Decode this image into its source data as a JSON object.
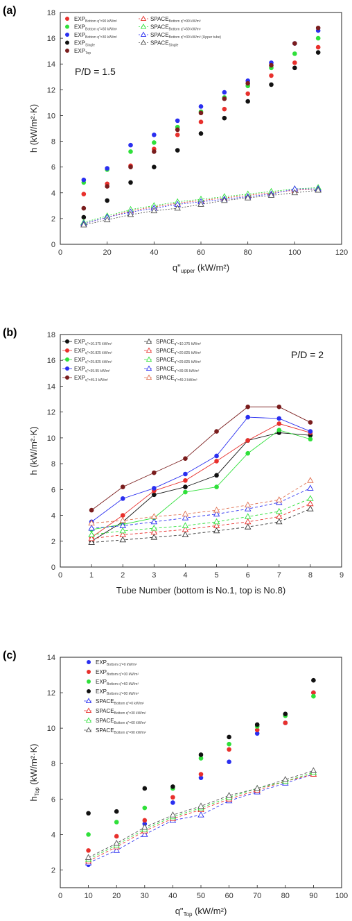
{
  "chart_data": [
    {
      "panel": "(a)",
      "type": "scatter",
      "xlabel": "q\"",
      "xlabel_sub": "upper",
      "xlabel_unit": " (kW/m²)",
      "ylabel": "h (kW/m²·K)",
      "xlim": [
        0,
        120
      ],
      "ylim": [
        0,
        18
      ],
      "xticks": [
        0,
        20,
        40,
        60,
        80,
        100,
        120
      ],
      "yticks": [
        0,
        2,
        4,
        6,
        8,
        10,
        12,
        14,
        16,
        18
      ],
      "annotation": "P/D = 1.5",
      "legend_columns": 2,
      "series": [
        {
          "label": "EXP",
          "sub": "Bottom q\"=90 kW/m²",
          "marker": "dot",
          "color": "#e8302c",
          "x": [
            10,
            20,
            30,
            40,
            50,
            60,
            70,
            80,
            90,
            100,
            110
          ],
          "y": [
            3.9,
            4.7,
            6.1,
            7.4,
            8.5,
            9.5,
            10.5,
            11.7,
            13.1,
            14.1,
            15.3
          ]
        },
        {
          "label": "EXP",
          "sub": "Bottom q\"=60 kW/m²",
          "marker": "dot",
          "color": "#2fe03a",
          "x": [
            10,
            20,
            30,
            40,
            50,
            60,
            70,
            80,
            90,
            100,
            110
          ],
          "y": [
            4.8,
            5.8,
            7.2,
            7.9,
            9.1,
            10.3,
            11.4,
            12.3,
            13.7,
            14.8,
            16.0
          ]
        },
        {
          "label": "EXP",
          "sub": "Bottom q\"=30 kW/m²",
          "marker": "dot",
          "color": "#2a2ff0",
          "x": [
            10,
            20,
            30,
            40,
            50,
            60,
            70,
            80,
            90,
            100,
            110
          ],
          "y": [
            5.0,
            5.9,
            7.7,
            8.5,
            9.6,
            10.7,
            11.8,
            12.7,
            14.1,
            15.6,
            16.6
          ]
        },
        {
          "label": "EXP",
          "sub": "Single",
          "marker": "dot",
          "color": "#111111",
          "x": [
            10,
            20,
            30,
            40,
            50,
            60,
            70,
            80,
            90,
            100,
            110
          ],
          "y": [
            2.1,
            3.4,
            4.8,
            6.0,
            7.3,
            8.6,
            9.8,
            11.1,
            12.4,
            13.7,
            14.9
          ]
        },
        {
          "label": "EXP",
          "sub": "Top",
          "marker": "dot",
          "color": "#7a1d1d",
          "x": [
            10,
            20,
            30,
            40,
            50,
            60,
            70,
            80,
            90,
            100,
            110
          ],
          "y": [
            2.8,
            4.5,
            6.0,
            7.2,
            8.9,
            10.2,
            11.3,
            12.5,
            13.9,
            15.6,
            16.8
          ]
        },
        {
          "label": "SPACE",
          "sub": "Bottom q\"=90 kW/m²",
          "marker": "tri",
          "color": "#e8302c",
          "dash": "2,2",
          "x": [
            10,
            20,
            30,
            40,
            50,
            60,
            70,
            80,
            90,
            100,
            110
          ],
          "y": [
            1.6,
            2.1,
            2.6,
            2.9,
            3.2,
            3.4,
            3.6,
            3.8,
            4.0,
            4.2,
            4.3
          ]
        },
        {
          "label": "SPACE",
          "sub": "Bottom q\"=60 kW/m²",
          "marker": "tri",
          "color": "#2fe03a",
          "dash": "2,2",
          "x": [
            10,
            20,
            30,
            40,
            50,
            60,
            70,
            80,
            90,
            100,
            110
          ],
          "y": [
            1.7,
            2.2,
            2.7,
            3.0,
            3.3,
            3.5,
            3.7,
            3.9,
            4.1,
            4.3,
            4.4
          ]
        },
        {
          "label": "SPACE",
          "sub": "Bottom q\"=30 kW/m² (Upper tube)",
          "marker": "tri",
          "color": "#2a2ff0",
          "dash": "2,2",
          "x": [
            10,
            20,
            30,
            40,
            50,
            60,
            70,
            80,
            90,
            100,
            110
          ],
          "y": [
            1.6,
            2.1,
            2.5,
            2.8,
            3.1,
            3.3,
            3.5,
            3.7,
            3.9,
            4.3,
            4.3
          ]
        },
        {
          "label": "SPACE",
          "sub": "Single",
          "marker": "tri",
          "color": "#555555",
          "dash": "2,2",
          "x": [
            10,
            20,
            30,
            40,
            50,
            60,
            70,
            80,
            90,
            100,
            110
          ],
          "y": [
            1.5,
            1.9,
            2.3,
            2.6,
            2.8,
            3.1,
            3.4,
            3.6,
            3.8,
            4.0,
            4.2
          ]
        }
      ]
    },
    {
      "panel": "(b)",
      "type": "line",
      "xlabel": "Tube Number (bottom is No.1, top is No.8)",
      "ylabel": "h (kW/m²·K)",
      "xlim": [
        0,
        9
      ],
      "ylim": [
        0,
        18
      ],
      "xticks": [
        0,
        1,
        2,
        3,
        4,
        5,
        6,
        7,
        8,
        9
      ],
      "yticks": [
        0,
        2,
        4,
        6,
        8,
        10,
        12,
        14,
        16,
        18
      ],
      "annotation": "P/D = 2",
      "legend_columns": 2,
      "series": [
        {
          "label": "EXP",
          "sub": "q\"=10.375 kW/m²",
          "marker": "dot",
          "color": "#111111",
          "x": [
            1,
            2,
            3,
            4,
            5,
            6,
            7,
            8
          ],
          "y": [
            2.0,
            3.5,
            5.6,
            6.2,
            7.1,
            9.8,
            10.4,
            10.2
          ]
        },
        {
          "label": "EXP",
          "sub": "q\"=20.825 kW/m²",
          "marker": "dot",
          "color": "#e8302c",
          "x": [
            1,
            2,
            3,
            4,
            5,
            6,
            7,
            8
          ],
          "y": [
            2.3,
            4.0,
            5.9,
            6.7,
            8.2,
            9.8,
            11.1,
            10.4
          ]
        },
        {
          "label": "EXP",
          "sub": "q\"=29.825 kW/m²",
          "marker": "dot",
          "color": "#2fe03a",
          "x": [
            1,
            2,
            3,
            4,
            5,
            6,
            7,
            8
          ],
          "y": [
            2.9,
            3.3,
            3.8,
            5.8,
            6.2,
            8.8,
            10.6,
            9.9
          ]
        },
        {
          "label": "EXP",
          "sub": "q\"=39.95 kW/m²",
          "marker": "dot",
          "color": "#2a2ff0",
          "x": [
            1,
            2,
            3,
            4,
            5,
            6,
            7,
            8
          ],
          "y": [
            3.5,
            5.3,
            6.1,
            7.2,
            8.6,
            11.6,
            11.5,
            10.5
          ]
        },
        {
          "label": "EXP",
          "sub": "q\"=49.3 kW/m²",
          "marker": "dot",
          "color": "#7a1d1d",
          "x": [
            1,
            2,
            3,
            4,
            5,
            6,
            7,
            8
          ],
          "y": [
            4.4,
            6.2,
            7.3,
            8.4,
            10.5,
            12.4,
            12.4,
            11.2
          ]
        },
        {
          "label": "SPACE",
          "sub": "q\"=10.375 kW/m²",
          "marker": "tri",
          "color": "#333333",
          "dash": "4,3",
          "x": [
            1,
            2,
            3,
            4,
            5,
            6,
            7,
            8
          ],
          "y": [
            1.9,
            2.1,
            2.3,
            2.5,
            2.8,
            3.1,
            3.5,
            4.5
          ]
        },
        {
          "label": "SPACE",
          "sub": "q\"=20.825 kW/m²",
          "marker": "tri",
          "color": "#e8302c",
          "dash": "4,3",
          "x": [
            1,
            2,
            3,
            4,
            5,
            6,
            7,
            8
          ],
          "y": [
            2.2,
            2.5,
            2.7,
            2.9,
            3.2,
            3.5,
            3.9,
            4.9
          ]
        },
        {
          "label": "SPACE",
          "sub": "q\"=29.825 kW/m²",
          "marker": "tri",
          "color": "#2fe03a",
          "dash": "4,3",
          "x": [
            1,
            2,
            3,
            4,
            5,
            6,
            7,
            8
          ],
          "y": [
            2.5,
            2.8,
            3.0,
            3.2,
            3.5,
            3.9,
            4.3,
            5.3
          ]
        },
        {
          "label": "SPACE",
          "sub": "q\"=39.95 kW/m²",
          "marker": "tri",
          "color": "#2a2ff0",
          "dash": "4,3",
          "x": [
            1,
            2,
            3,
            4,
            5,
            6,
            7,
            8
          ],
          "y": [
            3.0,
            3.2,
            3.5,
            3.8,
            4.1,
            4.5,
            5.0,
            6.1
          ]
        },
        {
          "label": "SPACE",
          "sub": "q\"=49.3 kW/m²",
          "marker": "tri",
          "color": "#e07050",
          "dash": "4,3",
          "x": [
            1,
            2,
            3,
            4,
            5,
            6,
            7,
            8
          ],
          "y": [
            3.4,
            3.6,
            3.9,
            4.1,
            4.4,
            4.8,
            5.2,
            6.7
          ]
        }
      ]
    },
    {
      "panel": "(c)",
      "type": "scatter",
      "xlabel": "q\"",
      "xlabel_sub": "Top",
      "xlabel_unit": " (kW/m²)",
      "ylabel": "h",
      "ylabel_sub": "Top",
      "ylabel_unit": " (kW/m²·K)",
      "xlim": [
        0,
        100
      ],
      "ylim": [
        1,
        14
      ],
      "xticks": [
        0,
        10,
        20,
        30,
        40,
        50,
        60,
        70,
        80,
        90,
        100
      ],
      "yticks": [
        2,
        4,
        6,
        8,
        10,
        12,
        14
      ],
      "annotation": "",
      "legend_columns": 1,
      "series": [
        {
          "label": "EXP",
          "sub": "Bottom q\"=0 kW/m²",
          "marker": "dot",
          "color": "#2a2ff0",
          "x": [
            10,
            20,
            30,
            40,
            50,
            60,
            70,
            80,
            90
          ],
          "y": [
            2.3,
            3.3,
            4.6,
            5.8,
            7.2,
            8.1,
            9.7,
            10.3,
            12.0
          ]
        },
        {
          "label": "EXP",
          "sub": "Bottom q\"=30 kW/m²",
          "marker": "dot",
          "color": "#e8302c",
          "x": [
            10,
            20,
            30,
            40,
            50,
            60,
            70,
            80,
            90
          ],
          "y": [
            3.1,
            3.9,
            4.8,
            6.1,
            7.4,
            8.8,
            9.9,
            10.3,
            12.0
          ]
        },
        {
          "label": "EXP",
          "sub": "Bottom q\"=60 kW/m²",
          "marker": "dot",
          "color": "#2fe03a",
          "x": [
            10,
            20,
            30,
            40,
            50,
            60,
            70,
            80,
            90
          ],
          "y": [
            4.0,
            4.7,
            5.5,
            6.6,
            8.3,
            9.1,
            10.1,
            10.7,
            11.8
          ]
        },
        {
          "label": "EXP",
          "sub": "Bottom q\"=90 kW/m²",
          "marker": "dot",
          "color": "#111111",
          "x": [
            10,
            20,
            30,
            40,
            50,
            60,
            70,
            80,
            90
          ],
          "y": [
            5.2,
            5.3,
            6.6,
            6.7,
            8.5,
            9.5,
            10.2,
            10.8,
            12.7
          ]
        },
        {
          "label": "SPACE",
          "sub": "Bottom q\"=0 kW/m²",
          "marker": "tri",
          "color": "#2a2ff0",
          "dash": "4,3",
          "x": [
            10,
            20,
            30,
            40,
            50,
            60,
            70,
            80,
            90
          ],
          "y": [
            2.4,
            3.1,
            4.0,
            4.8,
            5.1,
            5.9,
            6.4,
            6.9,
            7.4
          ]
        },
        {
          "label": "SPACE",
          "sub": "Bottom q\"=30 kW/m²",
          "marker": "tri",
          "color": "#e8302c",
          "dash": "4,3",
          "x": [
            10,
            20,
            30,
            40,
            50,
            60,
            70,
            80,
            90
          ],
          "y": [
            2.5,
            3.3,
            4.2,
            4.9,
            5.4,
            6.0,
            6.5,
            7.0,
            7.4
          ]
        },
        {
          "label": "SPACE",
          "sub": "Bottom q\"=60 kW/m²",
          "marker": "tri",
          "color": "#2fe03a",
          "dash": "4,3",
          "x": [
            10,
            20,
            30,
            40,
            50,
            60,
            70,
            80,
            90
          ],
          "y": [
            2.6,
            3.4,
            4.3,
            5.0,
            5.5,
            6.1,
            6.6,
            7.0,
            7.5
          ]
        },
        {
          "label": "SPACE",
          "sub": "Bottom q\"=90 kW/m²",
          "marker": "tri",
          "color": "#555555",
          "dash": "4,3",
          "x": [
            10,
            20,
            30,
            40,
            50,
            60,
            70,
            80,
            90
          ],
          "y": [
            2.7,
            3.5,
            4.4,
            5.1,
            5.6,
            6.2,
            6.6,
            7.1,
            7.6
          ]
        }
      ]
    }
  ]
}
